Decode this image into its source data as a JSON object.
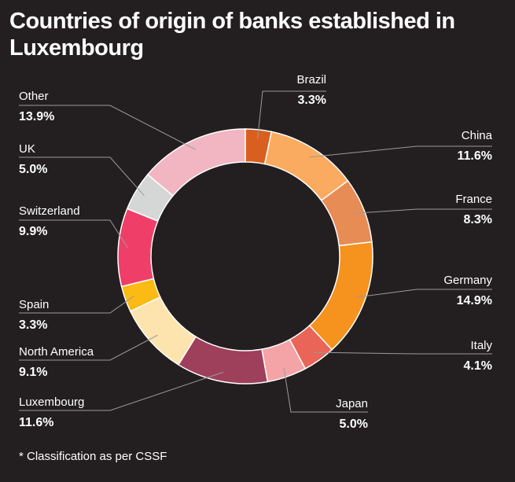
{
  "chart_data": {
    "type": "pie",
    "variant": "donut",
    "title": "Countries of origin of banks established in Luxembourg",
    "footnote": "* Classification as per CSSF",
    "background": "#231f20",
    "slices": [
      {
        "label": "Brazil",
        "value": 3.3,
        "display": "3.3%",
        "color": "#d95f1f"
      },
      {
        "label": "China",
        "value": 11.6,
        "display": "11.6%",
        "color": "#fbab60"
      },
      {
        "label": "France",
        "value": 8.3,
        "display": "8.3%",
        "color": "#e88c55"
      },
      {
        "label": "Germany",
        "value": 14.9,
        "display": "14.9%",
        "color": "#f6921e"
      },
      {
        "label": "Italy",
        "value": 4.1,
        "display": "4.1%",
        "color": "#ea6458"
      },
      {
        "label": "Japan",
        "value": 5.0,
        "display": "5.0%",
        "color": "#f4a3a6"
      },
      {
        "label": "Luxembourg",
        "value": 11.6,
        "display": "11.6%",
        "color": "#9e3f5b"
      },
      {
        "label": "North America",
        "value": 9.1,
        "display": "9.1%",
        "color": "#fde3ad"
      },
      {
        "label": "Spain",
        "value": 3.3,
        "display": "3.3%",
        "color": "#fbba14"
      },
      {
        "label": "Switzerland",
        "value": 9.9,
        "display": "9.9%",
        "color": "#ef3e68"
      },
      {
        "label": "UK",
        "value": 5.0,
        "display": "5.0%",
        "color": "#d5d6d6"
      },
      {
        "label": "Other",
        "value": 13.9,
        "display": "13.9%",
        "color": "#f2b5c2"
      }
    ]
  }
}
